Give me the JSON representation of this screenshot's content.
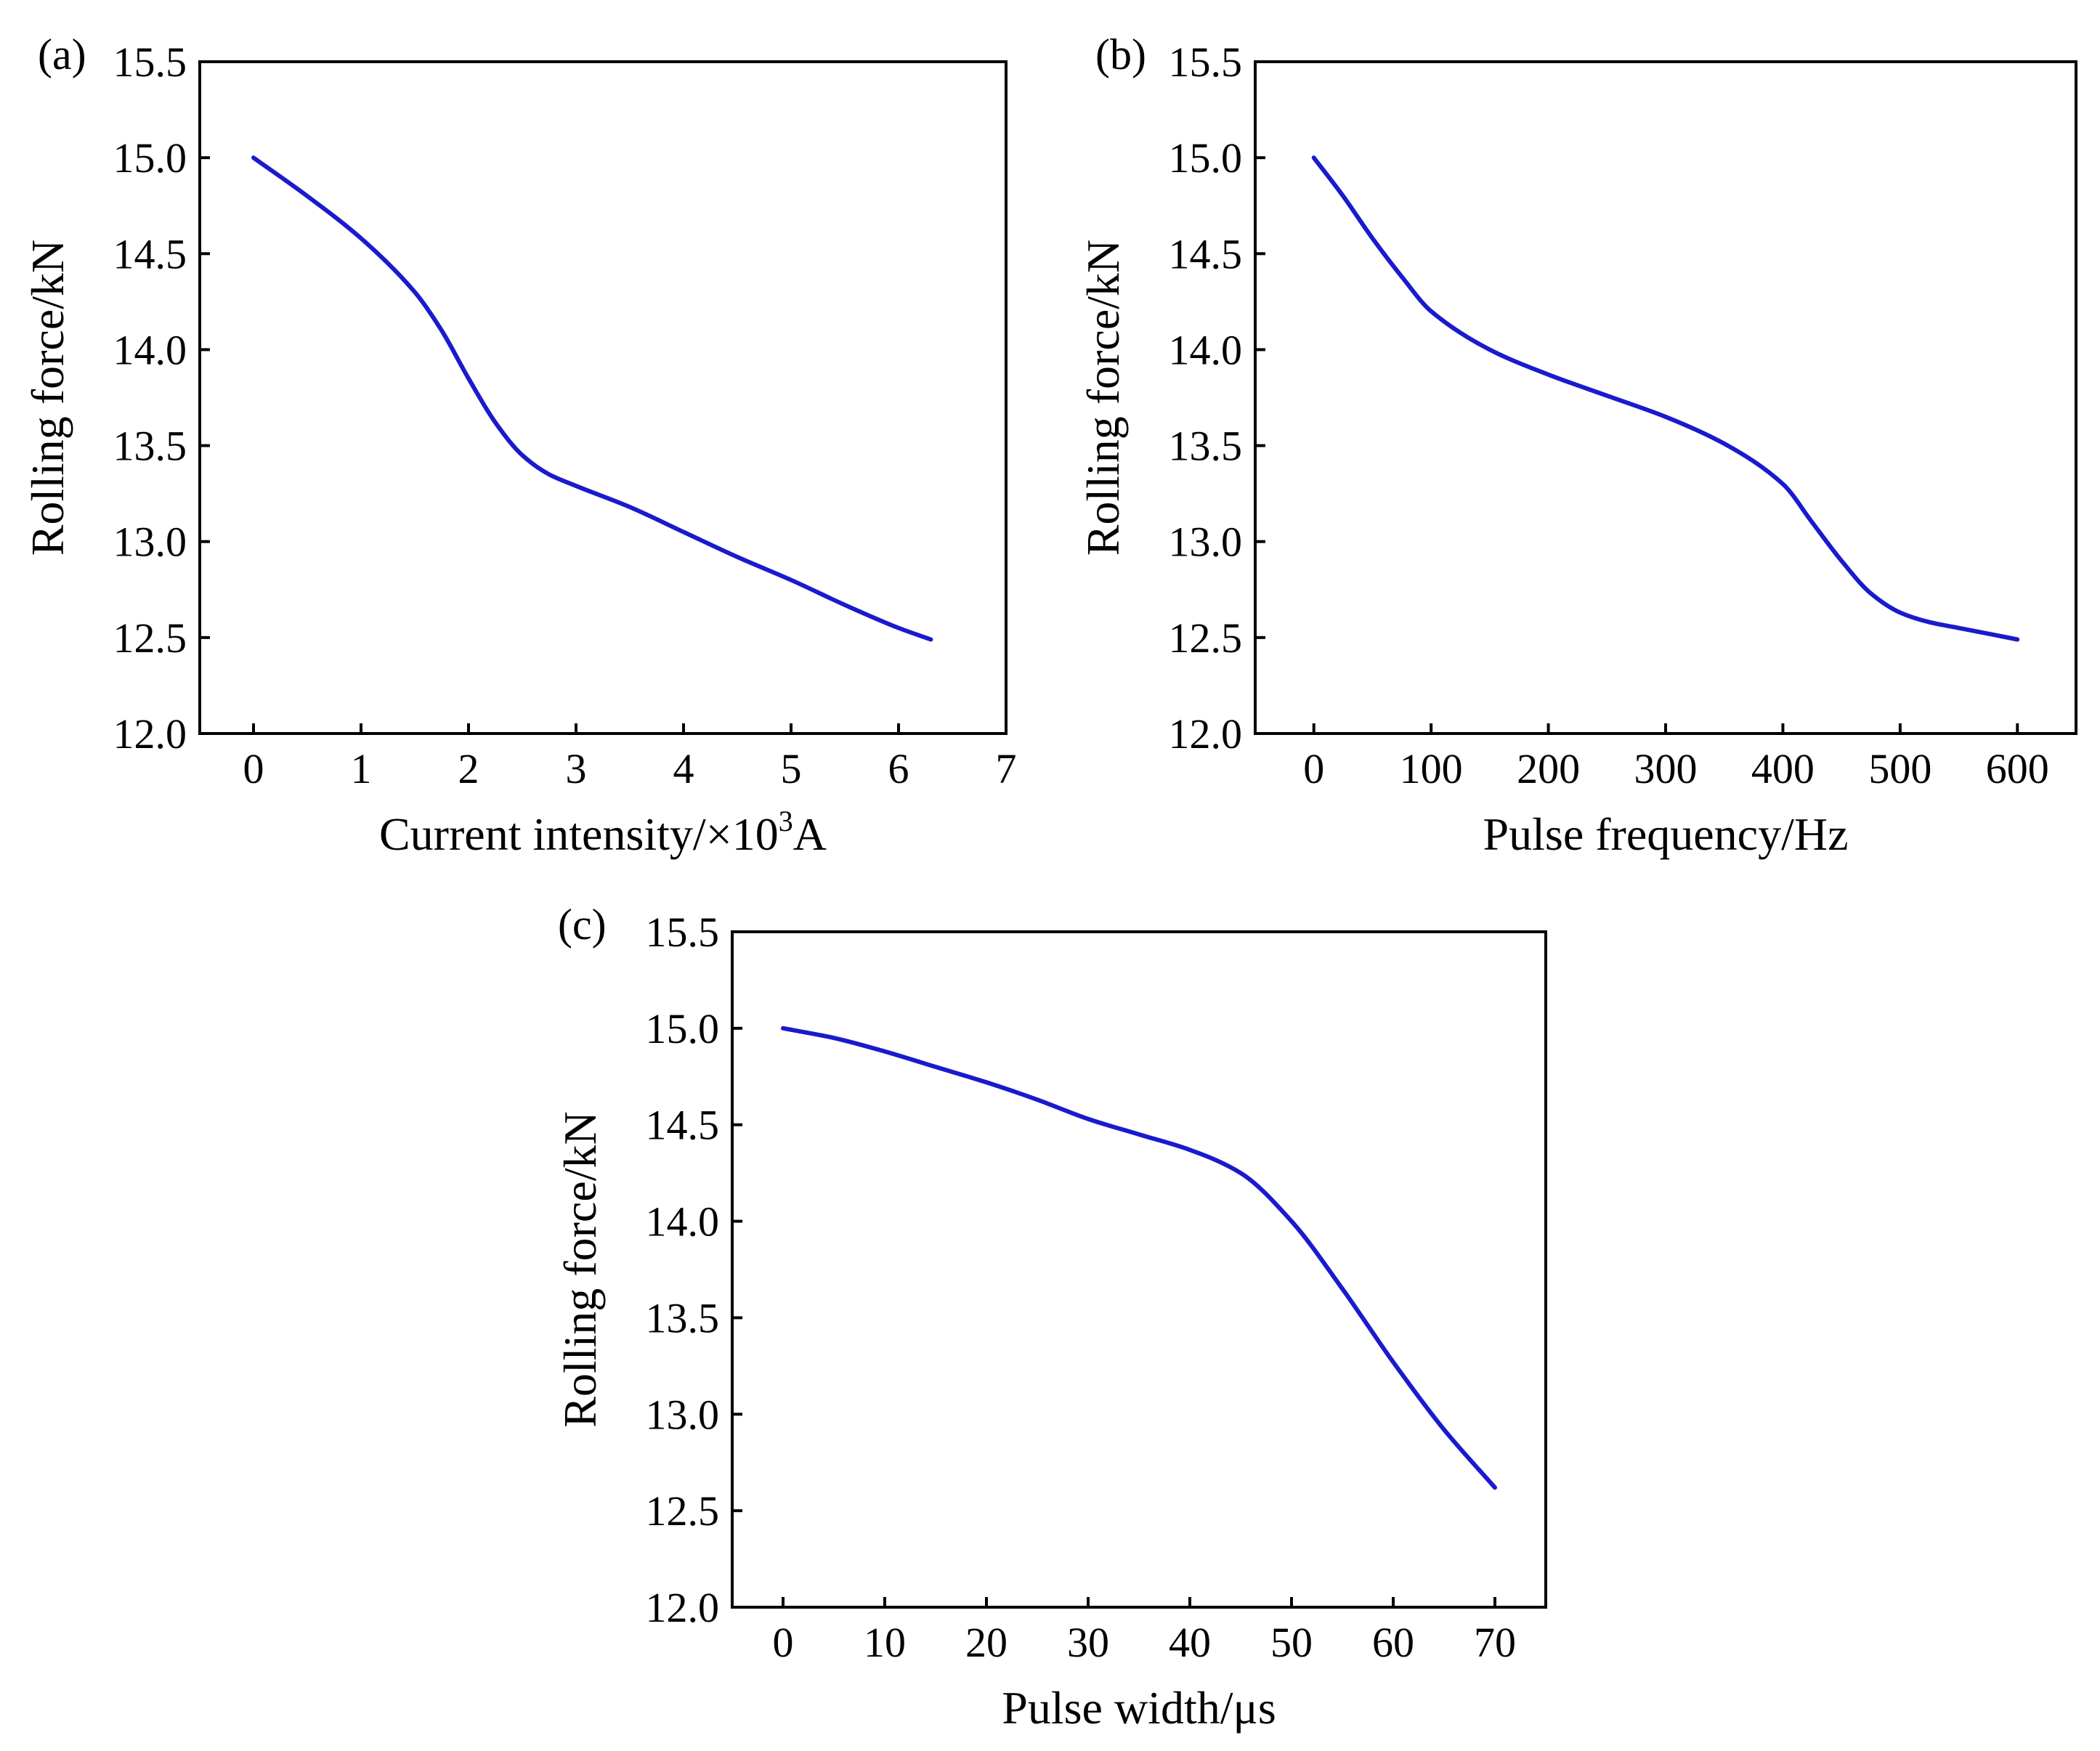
{
  "figure": {
    "line_color": "#1a1acd"
  },
  "chart_data": [
    {
      "id": "a",
      "type": "line",
      "panel_label": "(a)",
      "xlabel_main": "Current intensity/×10",
      "xlabel_sup": "3",
      "xlabel_unit": "A",
      "ylabel": "Rolling force/kN",
      "xlim": [
        -0.5,
        7
      ],
      "ylim": [
        12.0,
        15.5
      ],
      "xticks": [
        0,
        1,
        2,
        3,
        4,
        5,
        6,
        7
      ],
      "xtick_labels": [
        "0",
        "1",
        "2",
        "3",
        "4",
        "5",
        "6",
        "7"
      ],
      "yticks": [
        12.0,
        12.5,
        13.0,
        13.5,
        14.0,
        14.5,
        15.0,
        15.5
      ],
      "ytick_labels": [
        "12.0",
        "12.5",
        "13.0",
        "13.5",
        "14.0",
        "14.5",
        "15.0",
        "15.5"
      ],
      "series": [
        {
          "name": "Rolling force",
          "x": [
            0,
            0.5,
            1.0,
            1.5,
            1.75,
            2.0,
            2.25,
            2.5,
            2.75,
            3.0,
            3.5,
            4.0,
            4.5,
            5.0,
            5.5,
            6.0,
            6.3
          ],
          "y": [
            15.0,
            14.8,
            14.58,
            14.3,
            14.1,
            13.85,
            13.62,
            13.45,
            13.35,
            13.29,
            13.18,
            13.05,
            12.92,
            12.8,
            12.67,
            12.55,
            12.49
          ]
        }
      ]
    },
    {
      "id": "b",
      "type": "line",
      "panel_label": "(b)",
      "xlabel_main": "Pulse frequency/Hz",
      "xlabel_sup": "",
      "xlabel_unit": "",
      "ylabel": "Rolling force/kN",
      "xlim": [
        -50,
        650
      ],
      "ylim": [
        12.0,
        15.5
      ],
      "xticks": [
        0,
        100,
        200,
        300,
        400,
        500,
        600
      ],
      "xtick_labels": [
        "0",
        "100",
        "200",
        "300",
        "400",
        "500",
        "600"
      ],
      "yticks": [
        12.0,
        12.5,
        13.0,
        13.5,
        14.0,
        14.5,
        15.0,
        15.5
      ],
      "ytick_labels": [
        "12.0",
        "12.5",
        "13.0",
        "13.5",
        "14.0",
        "14.5",
        "15.0",
        "15.5"
      ],
      "series": [
        {
          "name": "Rolling force",
          "x": [
            0,
            25,
            50,
            75,
            100,
            150,
            200,
            250,
            300,
            350,
            400,
            425,
            450,
            475,
            500,
            525,
            550,
            600
          ],
          "y": [
            15.0,
            14.8,
            14.58,
            14.38,
            14.2,
            14.0,
            13.87,
            13.76,
            13.65,
            13.51,
            13.3,
            13.1,
            12.9,
            12.73,
            12.63,
            12.58,
            12.55,
            12.49
          ]
        }
      ]
    },
    {
      "id": "c",
      "type": "line",
      "panel_label": "(c)",
      "xlabel_main": "Pulse width/μs",
      "xlabel_sup": "",
      "xlabel_unit": "",
      "ylabel": "Rolling force/kN",
      "xlim": [
        -5,
        75
      ],
      "ylim": [
        12.0,
        15.5
      ],
      "xticks": [
        0,
        10,
        20,
        30,
        40,
        50,
        60,
        70
      ],
      "xtick_labels": [
        "0",
        "10",
        "20",
        "30",
        "40",
        "50",
        "60",
        "70"
      ],
      "yticks": [
        12.0,
        12.5,
        13.0,
        13.5,
        14.0,
        14.5,
        15.0,
        15.5
      ],
      "ytick_labels": [
        "12.0",
        "12.5",
        "13.0",
        "13.5",
        "14.0",
        "14.5",
        "15.0",
        "15.5"
      ],
      "series": [
        {
          "name": "Rolling force",
          "x": [
            0,
            5,
            10,
            15,
            20,
            25,
            30,
            35,
            40,
            45,
            50,
            55,
            60,
            65,
            70
          ],
          "y": [
            15.0,
            14.95,
            14.88,
            14.8,
            14.72,
            14.63,
            14.53,
            14.45,
            14.37,
            14.25,
            14.0,
            13.65,
            13.27,
            12.92,
            12.62
          ]
        }
      ]
    }
  ]
}
